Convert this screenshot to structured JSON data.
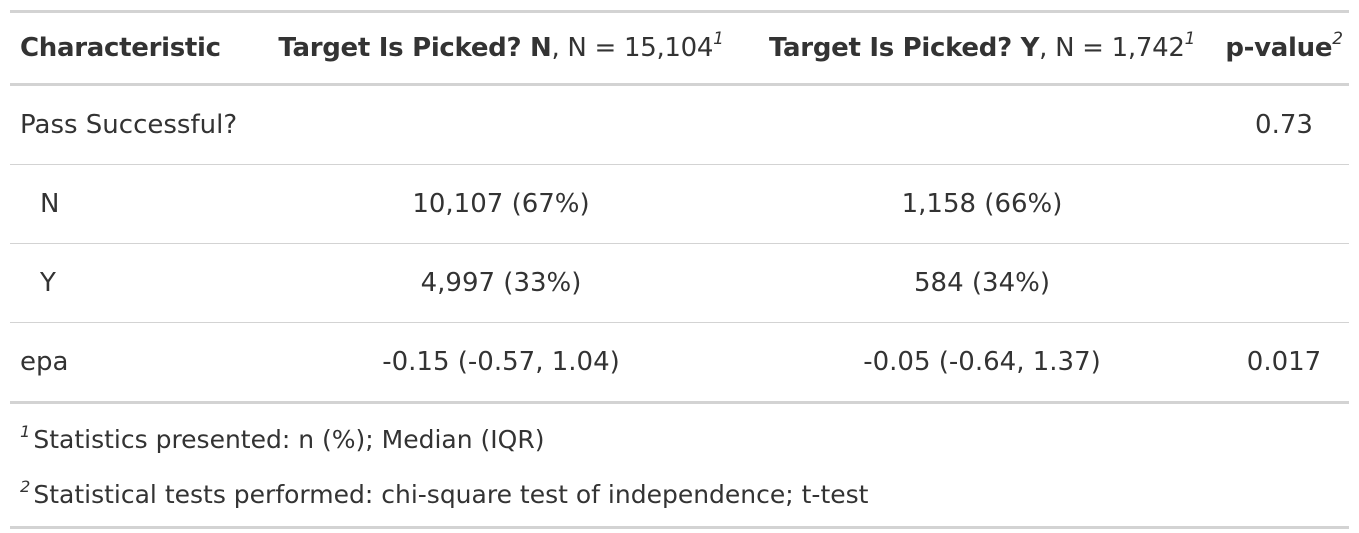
{
  "table": {
    "headers": [
      {
        "bold": "Characteristic",
        "rest": "",
        "sup": ""
      },
      {
        "bold": "Target Is Picked? N",
        "rest": ", N = 15,104",
        "sup": "1"
      },
      {
        "bold": "Target Is Picked? Y",
        "rest": ", N = 1,742",
        "sup": "1"
      },
      {
        "bold": "p-value",
        "rest": "",
        "sup": "2"
      }
    ],
    "rows": [
      {
        "label": "Pass Successful?",
        "n": "",
        "y": "",
        "p": "0.73"
      },
      {
        "label": "N",
        "n": "10,107 (67%)",
        "y": "1,158 (66%)",
        "p": ""
      },
      {
        "label": "Y",
        "n": "4,997 (33%)",
        "y": "584 (34%)",
        "p": ""
      },
      {
        "label": "epa",
        "n": "-0.15 (-0.57, 1.04)",
        "y": "-0.05 (-0.64, 1.37)",
        "p": "0.017"
      }
    ]
  },
  "footnotes": [
    {
      "mark": "1",
      "text": "Statistics presented: n (%); Median (IQR)"
    },
    {
      "mark": "2",
      "text": "Statistical tests performed: chi-square test of independence; t-test"
    }
  ]
}
